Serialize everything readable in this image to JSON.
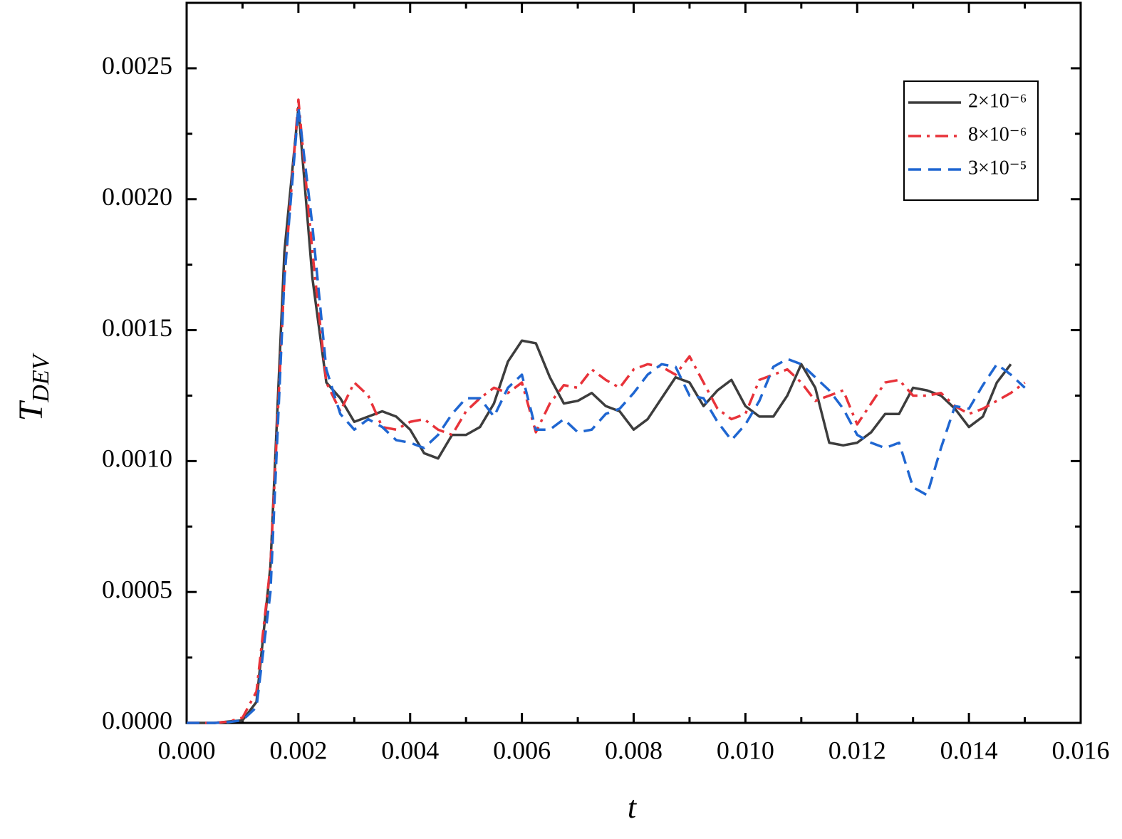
{
  "chart_data": {
    "type": "line",
    "xlabel": "t",
    "ylabel": "T",
    "ylabel_subscript": "DEV",
    "x": [
      0,
      0.00025,
      0.0005,
      0.00075,
      0.001,
      0.00125,
      0.0015,
      0.00175,
      0.002,
      0.00225,
      0.0025,
      0.00275,
      0.003,
      0.00325,
      0.0035,
      0.00375,
      0.004,
      0.00425,
      0.0045,
      0.00475,
      0.005,
      0.00525,
      0.0055,
      0.00575,
      0.006,
      0.00625,
      0.0065,
      0.00675,
      0.007,
      0.00725,
      0.0075,
      0.00775,
      0.008,
      0.00825,
      0.0085,
      0.00875,
      0.009,
      0.00925,
      0.0095,
      0.00975,
      0.01,
      0.01025,
      0.0105,
      0.01075,
      0.011,
      0.01125,
      0.0115,
      0.01175,
      0.012,
      0.01225,
      0.0125,
      0.01275,
      0.013,
      0.01325,
      0.0135,
      0.01375,
      0.014,
      0.01425,
      0.0145,
      0.01475,
      0.015
    ],
    "series": [
      {
        "name": "2×10⁻⁶",
        "color": "#3d3d3d",
        "dash": "solid",
        "values": [
          0,
          0,
          0,
          5e-06,
          1e-05,
          8e-05,
          0.0006,
          0.0018,
          0.00235,
          0.0017,
          0.0013,
          0.00124,
          0.00115,
          0.00117,
          0.00119,
          0.00117,
          0.00112,
          0.00103,
          0.00101,
          0.0011,
          0.0011,
          0.00113,
          0.00122,
          0.00138,
          0.00146,
          0.00145,
          0.00132,
          0.00122,
          0.00123,
          0.00126,
          0.00121,
          0.00119,
          0.00112,
          0.00116,
          0.00124,
          0.00132,
          0.0013,
          0.00121,
          0.00127,
          0.00131,
          0.00121,
          0.00117,
          0.00117,
          0.00125,
          0.00137,
          0.00128,
          0.00107,
          0.00106,
          0.00107,
          0.00111,
          0.00118,
          0.00118,
          0.00128,
          0.00127,
          0.00125,
          0.0012,
          0.00113,
          0.00117,
          0.0013,
          0.00137,
          null
        ]
      },
      {
        "name": "8×10⁻⁶",
        "color": "#e8333a",
        "dash": "dashdot",
        "values": [
          0,
          0,
          0,
          5e-06,
          2e-05,
          0.00012,
          0.0006,
          0.0017,
          0.00238,
          0.0018,
          0.0013,
          0.00119,
          0.0013,
          0.00125,
          0.00113,
          0.00112,
          0.00115,
          0.00116,
          0.00112,
          0.0011,
          0.00119,
          0.00124,
          0.00128,
          0.00126,
          0.0013,
          0.00111,
          0.00122,
          0.00129,
          0.00128,
          0.00135,
          0.00131,
          0.00128,
          0.00135,
          0.00137,
          0.00136,
          0.00133,
          0.0014,
          0.0013,
          0.0012,
          0.00116,
          0.00118,
          0.00131,
          0.00133,
          0.00135,
          0.0013,
          0.00123,
          0.00125,
          0.00127,
          0.00114,
          0.00122,
          0.0013,
          0.00131,
          0.00125,
          0.00125,
          0.00126,
          0.00121,
          0.00118,
          0.0012,
          0.00123,
          0.00126,
          0.0013
        ]
      },
      {
        "name": "3×10⁻⁵",
        "color": "#1f66d1",
        "dash": "dash",
        "values": [
          0,
          0,
          0,
          3e-06,
          1e-05,
          6e-05,
          0.0005,
          0.0017,
          0.00235,
          0.0019,
          0.00135,
          0.00118,
          0.00112,
          0.00116,
          0.00113,
          0.00108,
          0.00107,
          0.00105,
          0.0011,
          0.00118,
          0.00124,
          0.00124,
          0.00117,
          0.00128,
          0.00133,
          0.00112,
          0.00112,
          0.00116,
          0.00111,
          0.00112,
          0.00118,
          0.0012,
          0.00126,
          0.00133,
          0.00137,
          0.00136,
          0.00125,
          0.00124,
          0.00115,
          0.00108,
          0.00114,
          0.00123,
          0.00136,
          0.00139,
          0.00137,
          0.00132,
          0.00127,
          0.0012,
          0.0011,
          0.00107,
          0.00105,
          0.00107,
          0.0009,
          0.00087,
          0.00105,
          0.00121,
          0.0012,
          0.00129,
          0.00137,
          0.00133,
          0.00128
        ]
      }
    ],
    "xlim": [
      0,
      0.016
    ],
    "xticks": [
      {
        "value": 0,
        "label": "0.000"
      },
      {
        "value": 0.002,
        "label": "0.002"
      },
      {
        "value": 0.004,
        "label": "0.004"
      },
      {
        "value": 0.006,
        "label": "0.006"
      },
      {
        "value": 0.008,
        "label": "0.008"
      },
      {
        "value": 0.01,
        "label": "0.010"
      },
      {
        "value": 0.012,
        "label": "0.012"
      },
      {
        "value": 0.014,
        "label": "0.014"
      },
      {
        "value": 0.016,
        "label": "0.016"
      }
    ],
    "xminor_ticks": [
      0.001,
      0.003,
      0.005,
      0.007,
      0.009,
      0.011,
      0.013,
      0.015
    ],
    "ylim": [
      0,
      0.00275
    ],
    "yticks": [
      {
        "value": 0,
        "label": "0.0000"
      },
      {
        "value": 0.0005,
        "label": "0.0005"
      },
      {
        "value": 0.001,
        "label": "0.0010"
      },
      {
        "value": 0.0015,
        "label": "0.0015"
      },
      {
        "value": 0.002,
        "label": "0.0020"
      },
      {
        "value": 0.0025,
        "label": "0.0025"
      }
    ],
    "yminor_ticks": [
      0.00025,
      0.00075,
      0.00125,
      0.00175,
      0.00225
    ],
    "grid": false,
    "legend": "upper right"
  }
}
